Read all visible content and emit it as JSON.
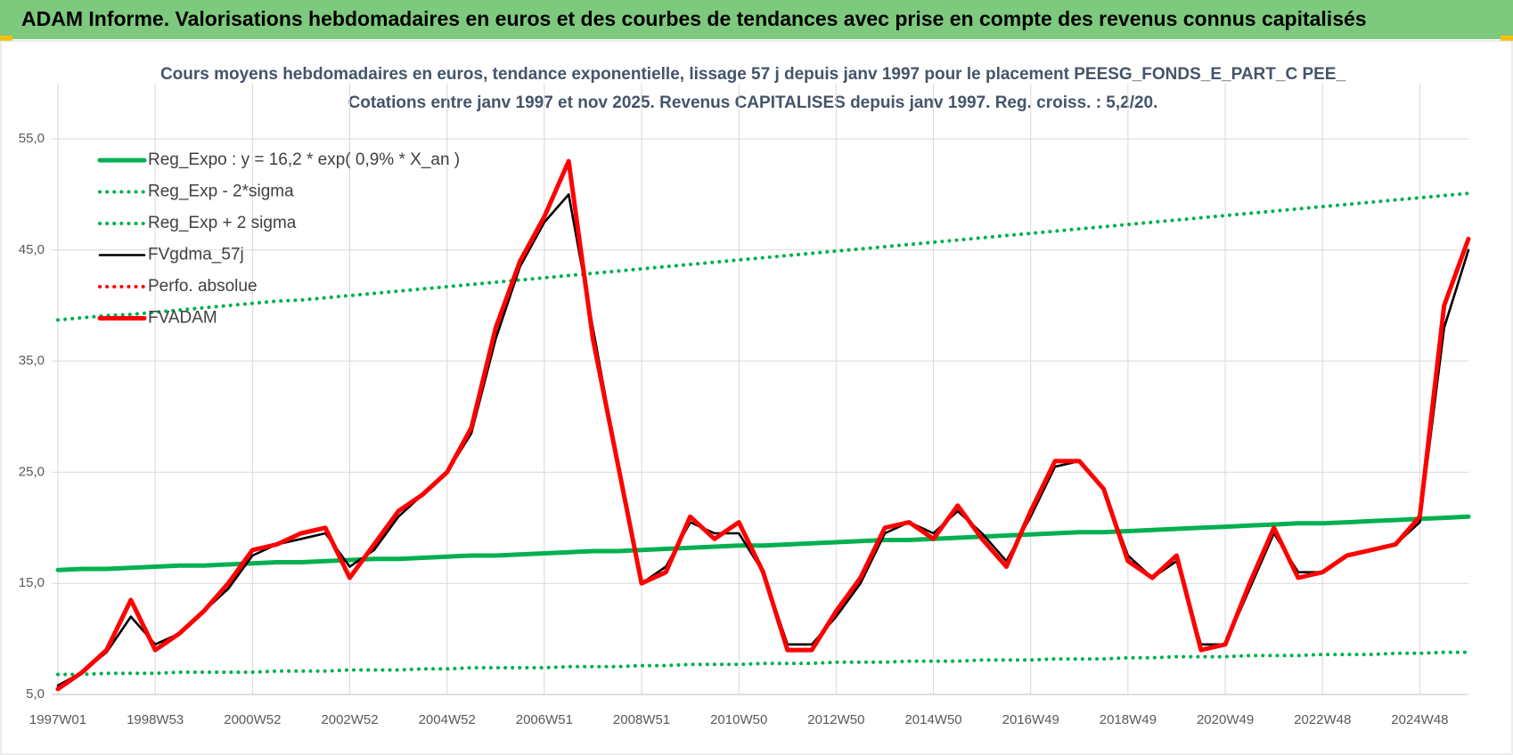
{
  "chart_data": {
    "type": "line",
    "title": "ADAM Informe. Valorisations hebdomadaires en euros et des courbes de tendances avec prise en compte des revenus connus capitalisés",
    "subtitle": [
      "Cours moyens hebdomadaires en euros, tendance exponentielle, lissage 57 j depuis janv 1997 pour le placement PEESG_FONDS_E_PART_C PEE_",
      "Cotations entre janv 1997 et nov 2025. Revenus CAPITALISES depuis janv 1997. Reg. croiss. : 5,2/20."
    ],
    "categories": [
      "1997W01",
      null,
      null,
      null,
      "1998W53",
      null,
      null,
      null,
      "2000W52",
      null,
      null,
      null,
      "2002W52",
      null,
      null,
      null,
      "2004W52",
      null,
      null,
      null,
      "2006W51",
      null,
      null,
      null,
      "2008W51",
      null,
      null,
      null,
      "2010W50",
      null,
      null,
      null,
      "2012W50",
      null,
      null,
      null,
      "2014W50",
      null,
      null,
      null,
      "2016W49",
      null,
      null,
      null,
      "2018W49",
      null,
      null,
      null,
      "2020W49",
      null,
      null,
      null,
      "2022W48",
      null,
      null,
      null,
      "2024W48",
      null,
      null
    ],
    "ylim": [
      5,
      60
    ],
    "yticks": [
      {
        "value": 5,
        "label": "5,0"
      },
      {
        "value": 15,
        "label": "15,0"
      },
      {
        "value": 25,
        "label": "25,0"
      },
      {
        "value": 35,
        "label": "35,0"
      },
      {
        "value": 45,
        "label": "45,0"
      },
      {
        "value": 55,
        "label": "55,0"
      }
    ],
    "grid": true,
    "legend": "upper left",
    "series": [
      {
        "name": "Reg_Expo : y = 16,2 * exp( 0,9% *  X_an )",
        "color": "#00b050",
        "style": "thick",
        "values": [
          16.2,
          16.3,
          16.3,
          16.4,
          16.5,
          16.6,
          16.6,
          16.7,
          16.8,
          16.9,
          16.9,
          17.0,
          17.1,
          17.2,
          17.2,
          17.3,
          17.4,
          17.5,
          17.5,
          17.6,
          17.7,
          17.8,
          17.9,
          17.9,
          18.0,
          18.1,
          18.2,
          18.3,
          18.4,
          18.4,
          18.5,
          18.6,
          18.7,
          18.8,
          18.9,
          18.9,
          19.0,
          19.1,
          19.2,
          19.3,
          19.4,
          19.5,
          19.6,
          19.6,
          19.7,
          19.8,
          19.9,
          20.0,
          20.1,
          20.2,
          20.3,
          20.4,
          20.4,
          20.5,
          20.6,
          20.7,
          20.8,
          20.9,
          21.0
        ]
      },
      {
        "name": "Reg_Exp - 2*sigma",
        "color": "#00b050",
        "style": "dotted",
        "values": [
          6.8,
          6.8,
          6.9,
          6.9,
          6.9,
          7.0,
          7.0,
          7.0,
          7.0,
          7.1,
          7.1,
          7.1,
          7.2,
          7.2,
          7.2,
          7.3,
          7.3,
          7.4,
          7.4,
          7.4,
          7.4,
          7.5,
          7.5,
          7.5,
          7.6,
          7.6,
          7.7,
          7.7,
          7.7,
          7.8,
          7.8,
          7.8,
          7.9,
          7.9,
          7.9,
          8.0,
          8.0,
          8.0,
          8.1,
          8.1,
          8.1,
          8.2,
          8.2,
          8.2,
          8.3,
          8.3,
          8.4,
          8.4,
          8.4,
          8.5,
          8.5,
          8.5,
          8.6,
          8.6,
          8.6,
          8.7,
          8.7,
          8.8,
          8.8
        ]
      },
      {
        "name": "Reg_Exp + 2 sigma",
        "color": "#00b050",
        "style": "dotted",
        "values": [
          38.7,
          38.9,
          39.1,
          39.2,
          39.4,
          39.6,
          39.8,
          40.0,
          40.2,
          40.4,
          40.5,
          40.7,
          40.9,
          41.1,
          41.3,
          41.5,
          41.7,
          41.9,
          42.1,
          42.3,
          42.5,
          42.7,
          42.9,
          43.1,
          43.3,
          43.5,
          43.7,
          43.9,
          44.1,
          44.3,
          44.5,
          44.7,
          44.9,
          45.1,
          45.3,
          45.5,
          45.7,
          45.9,
          46.1,
          46.3,
          46.5,
          46.7,
          46.9,
          47.1,
          47.3,
          47.5,
          47.7,
          47.9,
          48.1,
          48.3,
          48.5,
          48.7,
          48.9,
          49.1,
          49.3,
          49.5,
          49.7,
          49.9,
          50.1
        ]
      },
      {
        "name": "FVgdma_57j",
        "color": "#000000",
        "style": "thin",
        "values": [
          5.8,
          7,
          8.8,
          12,
          9.5,
          10.5,
          12.5,
          14.5,
          17.5,
          18.5,
          19,
          19.5,
          16.5,
          18,
          21,
          23,
          25,
          28.5,
          37,
          43.5,
          47.5,
          50,
          38,
          26,
          15,
          16.5,
          20.5,
          19.5,
          19.5,
          16,
          9.5,
          9.5,
          12,
          15,
          19.5,
          20.5,
          19.5,
          21.5,
          19.5,
          17,
          21,
          25.5,
          26,
          23.5,
          17.5,
          15.5,
          17,
          9.5,
          9.5,
          14.5,
          19.5,
          16,
          16,
          17.5,
          18,
          18.5,
          20.5,
          38,
          45
        ]
      },
      {
        "name": "Perfo. absolue",
        "color": "#ff0000",
        "style": "dotted",
        "values": [
          5.5,
          7,
          9,
          13.5,
          9,
          10.5,
          12.5,
          15,
          18,
          18.5,
          19.5,
          20,
          15.5,
          18.5,
          21.5,
          23,
          25,
          29,
          38,
          44,
          48,
          53,
          37,
          26,
          15,
          16,
          21,
          19,
          20.5,
          16,
          9,
          9,
          12.5,
          15.5,
          20,
          20.5,
          19,
          22,
          19,
          16.5,
          21.5,
          26,
          26,
          23.5,
          17,
          15.5,
          17.5,
          9,
          9.5,
          15,
          20,
          15.5,
          16,
          17.5,
          18,
          18.5,
          21,
          40,
          46
        ]
      },
      {
        "name": "FVADAM",
        "color": "#ff0000",
        "style": "thick",
        "values": [
          5.5,
          7,
          9,
          13.5,
          9,
          10.5,
          12.5,
          15,
          18,
          18.5,
          19.5,
          20,
          15.5,
          18.5,
          21.5,
          23,
          25,
          29,
          38,
          44,
          48,
          53,
          37,
          26,
          15,
          16,
          21,
          19,
          20.5,
          16,
          9,
          9,
          12.5,
          15.5,
          20,
          20.5,
          19,
          22,
          19,
          16.5,
          21.5,
          26,
          26,
          23.5,
          17,
          15.5,
          17.5,
          9,
          9.5,
          15,
          20,
          15.5,
          16,
          17.5,
          18,
          18.5,
          21,
          40,
          46
        ]
      }
    ]
  }
}
